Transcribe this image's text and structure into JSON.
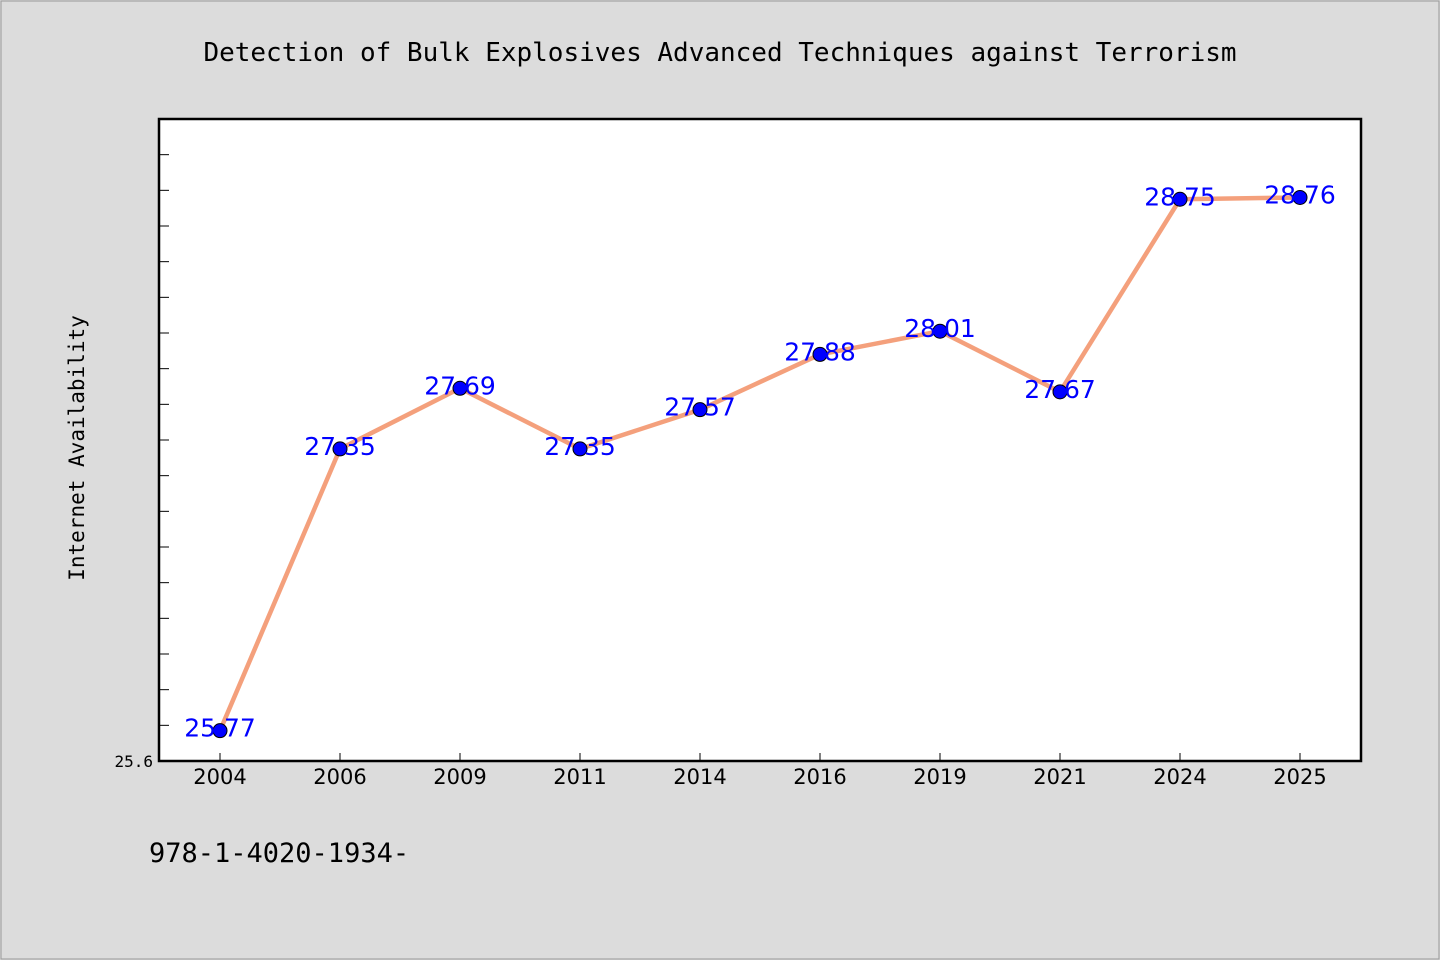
{
  "chart_data": {
    "type": "line",
    "title": "Detection of Bulk Explosives Advanced Techniques against Terrorism",
    "ylabel": "Internet Availability",
    "xlabel": "",
    "categories": [
      "2004",
      "2006",
      "2009",
      "2011",
      "2014",
      "2016",
      "2019",
      "2021",
      "2024",
      "2025"
    ],
    "values": [
      25.77,
      27.35,
      27.69,
      27.35,
      27.57,
      27.88,
      28.01,
      27.67,
      28.75,
      28.76
    ],
    "data_labels": [
      "25.77",
      "27.35",
      "27.69",
      "27.35",
      "27.57",
      "27.88",
      "28.01",
      "27.67",
      "28.75",
      "28.76"
    ],
    "ytick_labels": [
      "25.6"
    ],
    "ylim": [
      25.6,
      29.2
    ],
    "grid": false,
    "line_color": "#f4a07c",
    "marker_color": "#0000ff",
    "label_color": "#0000ff"
  },
  "footnote": "978-1-4020-1934-",
  "colors": {
    "background": "#dcdcdc",
    "plot_background": "#ffffff"
  }
}
